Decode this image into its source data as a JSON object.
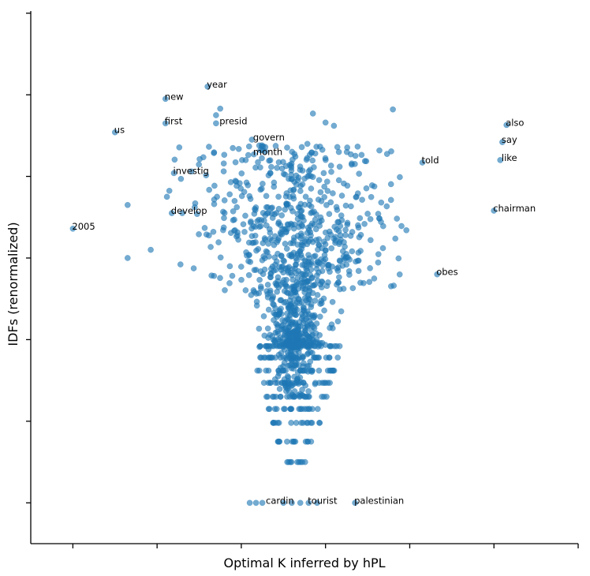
{
  "chart_data": {
    "type": "scatter",
    "xlabel": "Optimal K inferred by hPL",
    "ylabel": "IDFs (renormalized)",
    "xlim": [
      0,
      13
    ],
    "ylim": [
      0.5,
      7.0
    ],
    "x_ticks": [
      1,
      3,
      5,
      7,
      9,
      11,
      13
    ],
    "y_ticks": [
      1,
      2,
      3,
      4,
      5,
      6,
      7
    ],
    "tick_labels_shown": false,
    "grid": false,
    "color": "#1f77b4",
    "annotations": [
      {
        "text": "year",
        "x": 4.2,
        "y": 6.1
      },
      {
        "text": "new",
        "x": 3.2,
        "y": 5.95
      },
      {
        "text": "first",
        "x": 3.2,
        "y": 5.65
      },
      {
        "text": "us",
        "x": 2.0,
        "y": 5.54
      },
      {
        "text": "presid",
        "x": 4.5,
        "y": 5.65
      },
      {
        "text": "govern",
        "x": 5.3,
        "y": 5.45
      },
      {
        "text": "month",
        "x": 5.3,
        "y": 5.27
      },
      {
        "text": "investig",
        "x": 3.4,
        "y": 5.04
      },
      {
        "text": "develop",
        "x": 3.35,
        "y": 4.55
      },
      {
        "text": "2005",
        "x": 1.0,
        "y": 4.36
      },
      {
        "text": "also",
        "x": 11.3,
        "y": 5.63
      },
      {
        "text": "say",
        "x": 11.2,
        "y": 5.42
      },
      {
        "text": "like",
        "x": 11.2,
        "y": 5.2
      },
      {
        "text": "told",
        "x": 9.3,
        "y": 5.17
      },
      {
        "text": "chairman",
        "x": 11.0,
        "y": 4.58
      },
      {
        "text": "obes",
        "x": 9.65,
        "y": 3.8
      },
      {
        "text": "cardin",
        "x": 5.6,
        "y": 1.0
      },
      {
        "text": "tourist",
        "x": 6.6,
        "y": 1.0
      },
      {
        "text": "palestinian",
        "x": 7.7,
        "y": 1.0
      }
    ],
    "highlight_points": [
      {
        "x": 4.2,
        "y": 6.1
      },
      {
        "x": 3.2,
        "y": 5.95
      },
      {
        "x": 3.2,
        "y": 5.65
      },
      {
        "x": 2.0,
        "y": 5.54
      },
      {
        "x": 4.4,
        "y": 5.65
      },
      {
        "x": 5.25,
        "y": 5.45
      },
      {
        "x": 5.3,
        "y": 5.27
      },
      {
        "x": 3.4,
        "y": 5.04
      },
      {
        "x": 3.35,
        "y": 4.55
      },
      {
        "x": 1.0,
        "y": 4.36
      },
      {
        "x": 11.3,
        "y": 5.63
      },
      {
        "x": 11.2,
        "y": 5.42
      },
      {
        "x": 11.15,
        "y": 5.2
      },
      {
        "x": 9.3,
        "y": 5.17
      },
      {
        "x": 11.0,
        "y": 4.58
      },
      {
        "x": 9.65,
        "y": 3.8
      },
      {
        "x": 5.35,
        "y": 1.0
      },
      {
        "x": 6.6,
        "y": 1.0
      },
      {
        "x": 7.7,
        "y": 1.0
      },
      {
        "x": 5.2,
        "y": 1.0
      },
      {
        "x": 5.5,
        "y": 1.0
      },
      {
        "x": 6.0,
        "y": 1.0
      },
      {
        "x": 6.2,
        "y": 1.0
      },
      {
        "x": 6.4,
        "y": 1.0
      },
      {
        "x": 6.8,
        "y": 1.0
      },
      {
        "x": 2.3,
        "y": 4.65
      },
      {
        "x": 2.3,
        "y": 4.0
      },
      {
        "x": 4.4,
        "y": 5.75
      },
      {
        "x": 4.5,
        "y": 5.83
      },
      {
        "x": 8.6,
        "y": 5.82
      },
      {
        "x": 6.7,
        "y": 5.77
      },
      {
        "x": 7.2,
        "y": 5.62
      },
      {
        "x": 7.0,
        "y": 5.66
      },
      {
        "x": 5.5,
        "y": 5.32
      }
    ],
    "cluster": {
      "description_free": true,
      "center_x": 6.3,
      "main_y_range": [
        1.5,
        5.3
      ],
      "discrete_rows_y": [
        1.5,
        1.75,
        1.98,
        2.15,
        2.3,
        2.47,
        2.62,
        2.78,
        2.92
      ]
    }
  }
}
